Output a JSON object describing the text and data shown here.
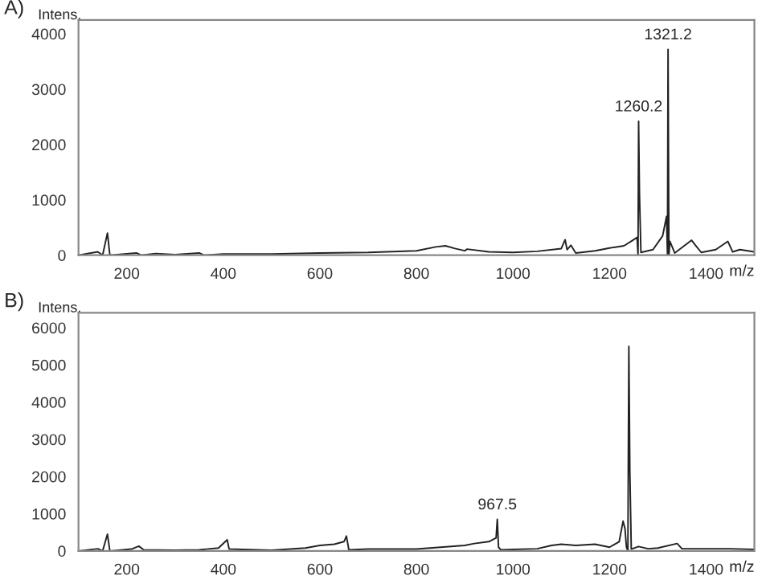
{
  "chart_data": [
    {
      "type": "line",
      "title": "A)",
      "xlabel": "m/z",
      "ylabel": "Intens.",
      "xlim": [
        100,
        1500
      ],
      "ylim": [
        0,
        4250
      ],
      "xticks": [
        200,
        400,
        600,
        800,
        1000,
        1200,
        1400
      ],
      "yticks": [
        0,
        1000,
        2000,
        3000,
        4000
      ],
      "grid": false,
      "legend": false,
      "marker": "none",
      "line_style": "solid",
      "annotations": [
        {
          "text": "1260.2",
          "x": 1260.2,
          "y": 2420
        },
        {
          "text": "1321.2",
          "x": 1321.2,
          "y": 3720
        }
      ],
      "series": [
        {
          "color": "#222222",
          "x": [
            100,
            140,
            150,
            160,
            165,
            220,
            230,
            260,
            300,
            350,
            360,
            400,
            500,
            600,
            700,
            800,
            840,
            860,
            880,
            900,
            905,
            950,
            1000,
            1050,
            1100,
            1108,
            1112,
            1120,
            1130,
            1170,
            1200,
            1230,
            1250,
            1257,
            1259,
            1260.2,
            1262,
            1265,
            1290,
            1310,
            1318,
            1320,
            1321.2,
            1323,
            1325,
            1335,
            1370,
            1378,
            1390,
            1420,
            1445,
            1455,
            1470,
            1500
          ],
          "values": [
            0,
            60,
            0,
            400,
            0,
            40,
            0,
            30,
            10,
            40,
            0,
            20,
            20,
            40,
            50,
            80,
            150,
            170,
            120,
            80,
            110,
            60,
            50,
            70,
            120,
            280,
            100,
            180,
            40,
            80,
            130,
            170,
            280,
            320,
            0,
            2420,
            1100,
            50,
            100,
            350,
            700,
            0,
            3720,
            0,
            250,
            40,
            270,
            180,
            50,
            100,
            250,
            60,
            100,
            60
          ]
        }
      ]
    },
    {
      "type": "line",
      "title": "B)",
      "xlabel": "m/z",
      "ylabel": "Intens.",
      "xlim": [
        100,
        1500
      ],
      "ylim": [
        0,
        6400
      ],
      "xticks": [
        200,
        400,
        600,
        800,
        1000,
        1200,
        1400
      ],
      "yticks": [
        0,
        1000,
        2000,
        3000,
        4000,
        5000,
        6000
      ],
      "grid": false,
      "legend": false,
      "marker": "none",
      "line_style": "solid",
      "annotations": [
        {
          "text": "967.5",
          "x": 967.5,
          "y": 850
        }
      ],
      "series": [
        {
          "color": "#222222",
          "x": [
            100,
            140,
            150,
            160,
            165,
            210,
            225,
            235,
            300,
            350,
            390,
            408,
            412,
            440,
            500,
            570,
            600,
            630,
            650,
            655,
            660,
            700,
            800,
            850,
            900,
            920,
            950,
            965,
            967.5,
            970,
            975,
            1000,
            1050,
            1080,
            1100,
            1130,
            1170,
            1200,
            1220,
            1228,
            1232,
            1235,
            1238,
            1240,
            1242,
            1245,
            1260,
            1280,
            1300,
            1340,
            1350,
            1400,
            1450,
            1500
          ],
          "values": [
            0,
            60,
            0,
            450,
            0,
            50,
            130,
            30,
            20,
            30,
            80,
            300,
            50,
            40,
            20,
            80,
            150,
            180,
            250,
            400,
            30,
            50,
            50,
            100,
            150,
            200,
            250,
            350,
            850,
            100,
            30,
            40,
            60,
            150,
            180,
            150,
            180,
            100,
            250,
            800,
            600,
            100,
            0,
            5500,
            2200,
            50,
            120,
            60,
            80,
            200,
            60,
            60,
            60,
            40
          ]
        }
      ]
    }
  ]
}
